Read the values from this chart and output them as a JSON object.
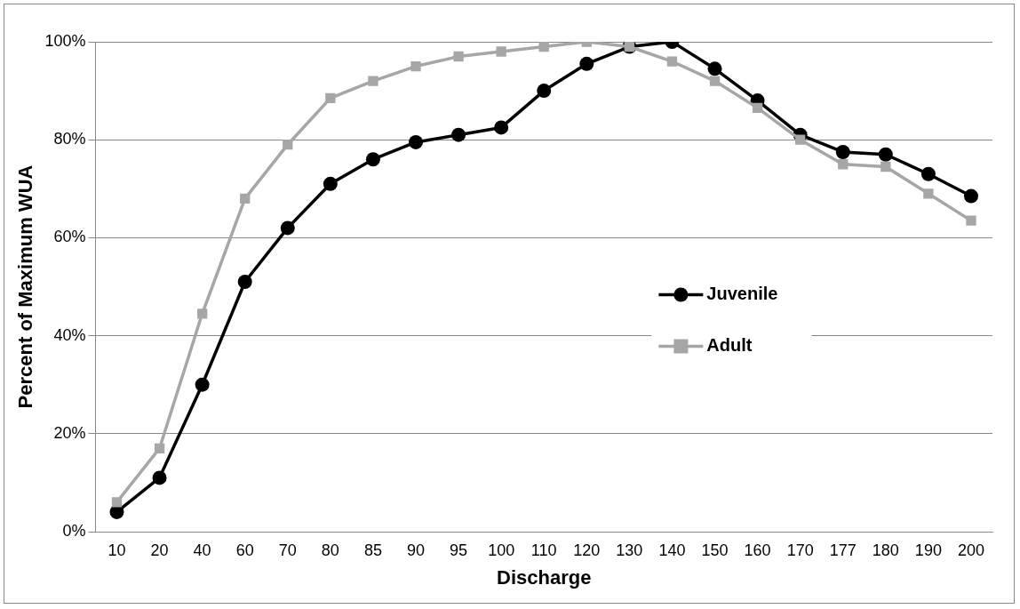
{
  "chart_data": {
    "type": "line",
    "xlabel": "Discharge",
    "ylabel": "Percent of Maximum WUA",
    "categories": [
      "10",
      "20",
      "40",
      "60",
      "70",
      "80",
      "85",
      "90",
      "95",
      "100",
      "110",
      "120",
      "130",
      "140",
      "150",
      "160",
      "170",
      "177",
      "180",
      "190",
      "200"
    ],
    "series": [
      {
        "name": "Juvenile",
        "color": "#000000",
        "marker": "circle",
        "values": [
          4,
          11,
          30,
          51,
          62,
          71,
          76,
          79.5,
          81,
          82.5,
          90,
          95.5,
          99,
          100,
          94.5,
          88,
          81,
          77.5,
          77,
          73,
          68.5
        ]
      },
      {
        "name": "Adult",
        "color": "#a6a6a6",
        "marker": "square",
        "values": [
          6,
          17,
          44.5,
          68,
          79,
          88.5,
          92,
          95,
          97,
          98,
          99,
          100,
          99,
          96,
          92,
          86.5,
          80,
          75,
          74.5,
          69,
          63.5
        ]
      }
    ],
    "ylim": [
      0,
      100
    ],
    "yticks": [
      {
        "value": 0,
        "label": "0%"
      },
      {
        "value": 20,
        "label": "20%"
      },
      {
        "value": 40,
        "label": "40%"
      },
      {
        "value": 60,
        "label": "60%"
      },
      {
        "value": 80,
        "label": "80%"
      },
      {
        "value": 100,
        "label": "100%"
      }
    ],
    "grid": "y",
    "legend": "right"
  }
}
